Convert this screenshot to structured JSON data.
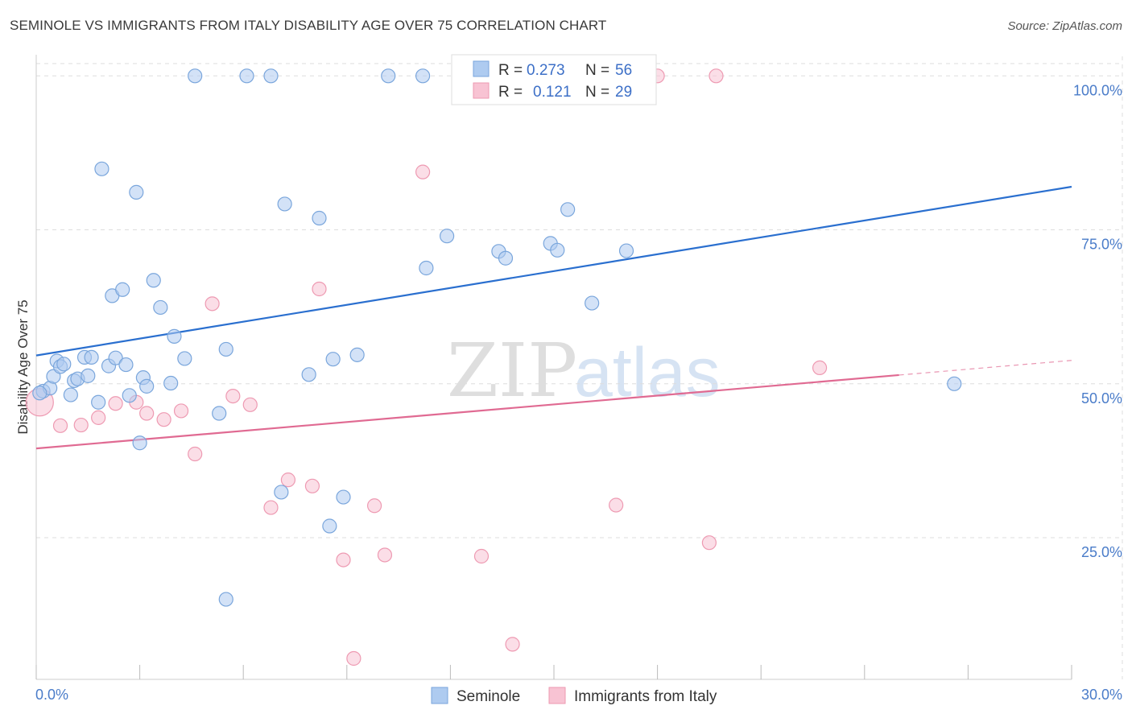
{
  "header": {
    "title": "SEMINOLE VS IMMIGRANTS FROM ITALY DISABILITY AGE OVER 75 CORRELATION CHART",
    "source": "Source: ZipAtlas.com"
  },
  "watermark": {
    "part1": "ZIP",
    "part2": "atlas"
  },
  "colors": {
    "blue_fill": "#aecbf0",
    "blue_stroke": "#7aa6dc",
    "blue_line": "#2a6fcf",
    "pink_fill": "#f8c3d3",
    "pink_stroke": "#ee9ab2",
    "pink_line": "#e06a92",
    "tick_text": "#4a7cc9",
    "grid": "#dddddd"
  },
  "legend": {
    "r_label": "R =",
    "n_label": "N =",
    "series": [
      {
        "r": "0.273",
        "n": "56"
      },
      {
        "r": "0.121",
        "n": "29"
      }
    ]
  },
  "chart_data": {
    "type": "scatter",
    "title": "SEMINOLE VS IMMIGRANTS FROM ITALY DISABILITY AGE OVER 75 CORRELATION CHART",
    "xlabel": "",
    "ylabel": "Disability Age Over 75",
    "xlim": [
      0,
      30
    ],
    "ylim": [
      2,
      102
    ],
    "x_tick_labels": [
      "0.0%",
      "30.0%"
    ],
    "y_ticks": [
      25,
      50,
      75,
      100
    ],
    "y_tick_labels": [
      "25.0%",
      "50.0%",
      "75.0%",
      "100.0%"
    ],
    "grid": true,
    "series": [
      {
        "name": "Seminole",
        "r": 0.273,
        "n": 56,
        "trend": {
          "x": [
            0,
            30
          ],
          "y": [
            54.6,
            82.0
          ],
          "solid_until": 30
        },
        "points": [
          [
            0.2,
            48.8
          ],
          [
            0.4,
            49.3
          ],
          [
            0.5,
            51.2
          ],
          [
            0.6,
            53.7
          ],
          [
            0.7,
            52.8
          ],
          [
            0.8,
            53.2
          ],
          [
            1.0,
            48.2
          ],
          [
            1.1,
            50.5
          ],
          [
            1.2,
            50.8
          ],
          [
            1.5,
            51.3
          ],
          [
            1.4,
            54.3
          ],
          [
            1.8,
            47.0
          ],
          [
            1.9,
            84.9
          ],
          [
            2.1,
            52.9
          ],
          [
            2.2,
            64.3
          ],
          [
            2.3,
            54.2
          ],
          [
            2.5,
            65.3
          ],
          [
            2.6,
            53.1
          ],
          [
            2.7,
            48.1
          ],
          [
            2.9,
            81.1
          ],
          [
            3.1,
            51.0
          ],
          [
            3.2,
            49.6
          ],
          [
            3.4,
            66.8
          ],
          [
            3.6,
            62.4
          ],
          [
            3.9,
            50.1
          ],
          [
            4.0,
            57.7
          ],
          [
            4.3,
            54.1
          ],
          [
            4.6,
            100.0
          ],
          [
            5.3,
            45.2
          ],
          [
            5.5,
            55.6
          ],
          [
            6.1,
            100.0
          ],
          [
            6.8,
            100.0
          ],
          [
            7.1,
            32.4
          ],
          [
            7.2,
            79.2
          ],
          [
            7.9,
            51.5
          ],
          [
            8.2,
            76.9
          ],
          [
            8.5,
            26.9
          ],
          [
            8.6,
            54.0
          ],
          [
            8.9,
            31.6
          ],
          [
            9.3,
            54.7
          ],
          [
            10.2,
            100.0
          ],
          [
            11.2,
            100.0
          ],
          [
            11.3,
            68.8
          ],
          [
            11.9,
            74.0
          ],
          [
            13.4,
            71.5
          ],
          [
            13.6,
            70.4
          ],
          [
            14.9,
            72.8
          ],
          [
            15.1,
            71.7
          ],
          [
            15.4,
            78.3
          ],
          [
            16.1,
            63.1
          ],
          [
            17.1,
            71.6
          ],
          [
            26.6,
            50.0
          ],
          [
            3.0,
            40.4
          ],
          [
            5.5,
            15.0
          ],
          [
            1.6,
            54.3
          ],
          [
            0.1,
            48.5
          ]
        ]
      },
      {
        "name": "Immigrants from Italy",
        "r": 0.121,
        "n": 29,
        "trend": {
          "x": [
            0,
            30
          ],
          "y": [
            39.5,
            53.8
          ],
          "solid_until": 25
        },
        "points": [
          [
            0.1,
            47.0
          ],
          [
            0.7,
            43.2
          ],
          [
            1.3,
            43.3
          ],
          [
            1.8,
            44.5
          ],
          [
            2.3,
            46.8
          ],
          [
            2.9,
            47.0
          ],
          [
            3.2,
            45.2
          ],
          [
            3.7,
            44.2
          ],
          [
            4.2,
            45.6
          ],
          [
            4.6,
            38.6
          ],
          [
            5.1,
            63.0
          ],
          [
            5.7,
            48.0
          ],
          [
            6.2,
            46.6
          ],
          [
            6.8,
            29.9
          ],
          [
            7.3,
            34.4
          ],
          [
            8.0,
            33.4
          ],
          [
            8.2,
            65.4
          ],
          [
            8.9,
            21.4
          ],
          [
            9.2,
            5.4
          ],
          [
            9.8,
            30.2
          ],
          [
            10.1,
            22.2
          ],
          [
            11.2,
            84.4
          ],
          [
            12.9,
            22.0
          ],
          [
            13.8,
            7.7
          ],
          [
            16.8,
            30.3
          ],
          [
            18.0,
            100.0
          ],
          [
            19.7,
            100.0
          ],
          [
            19.5,
            24.2
          ],
          [
            22.7,
            52.6
          ]
        ]
      }
    ]
  },
  "bottom_legend": {
    "items": [
      "Seminole",
      "Immigrants from Italy"
    ]
  }
}
